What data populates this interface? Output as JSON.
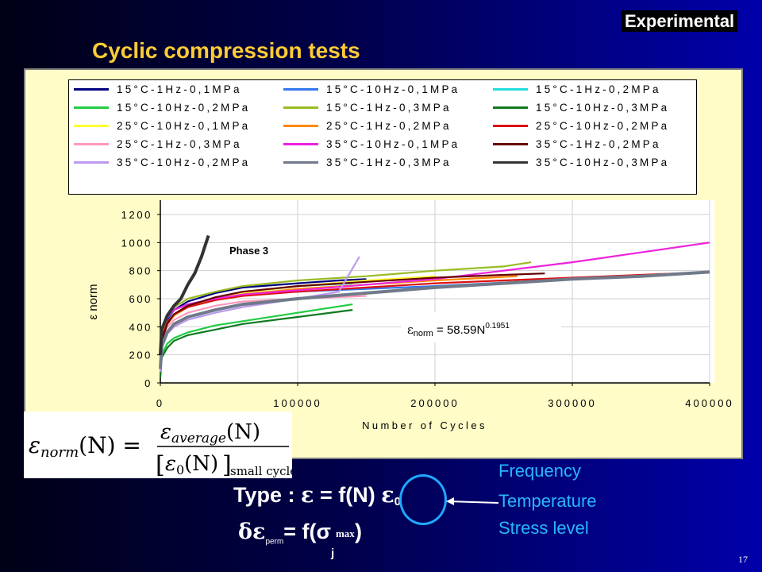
{
  "header": {
    "tag": "Experimental",
    "title": "Cyclic compression tests"
  },
  "chart_data": {
    "type": "line",
    "xlabel": "Number of Cycles",
    "ylabel": "ε norm",
    "xlim": [
      0,
      400000
    ],
    "ylim": [
      0,
      1200
    ],
    "xticks": [
      "0",
      "100000",
      "200000",
      "300000",
      "400000"
    ],
    "yticks": [
      "0",
      "200",
      "400",
      "600",
      "800",
      "1000",
      "1200"
    ],
    "grid": true,
    "legend": "top",
    "annotations": {
      "phase": "Phase 3",
      "fit_lhs": "ε",
      "fit_sub": "norm",
      "fit_rhs": " = 58.59N",
      "fit_exp": "0.1951"
    },
    "series": [
      {
        "name": "15°C-1Hz-0,1MPa",
        "color": "#000080",
        "x": [
          0,
          1000,
          5000,
          10000,
          20000,
          40000,
          60000,
          100000,
          130000,
          150000
        ],
        "y": [
          150,
          330,
          450,
          520,
          580,
          640,
          680,
          710,
          730,
          740
        ]
      },
      {
        "name": "15°C-10Hz-0,1MPa",
        "color": "#3377ee",
        "x": [
          0,
          1000,
          5000,
          10000,
          20000,
          40000,
          60000,
          100000,
          150000,
          200000,
          260000
        ],
        "y": [
          200,
          350,
          460,
          520,
          560,
          600,
          630,
          650,
          670,
          690,
          720
        ]
      },
      {
        "name": "15°C-1Hz-0,2MPa",
        "color": "#22dddd",
        "x": [
          0,
          1000,
          5000,
          10000,
          20000,
          40000,
          60000,
          100000,
          140000
        ],
        "y": [
          150,
          330,
          430,
          480,
          540,
          600,
          640,
          690,
          710
        ]
      },
      {
        "name": "15°C-10Hz-0,2MPa",
        "color": "#22cc44",
        "x": [
          0,
          1000,
          5000,
          10000,
          20000,
          40000,
          60000,
          100000,
          140000
        ],
        "y": [
          60,
          200,
          280,
          320,
          360,
          410,
          440,
          500,
          560
        ]
      },
      {
        "name": "15°C-1Hz-0,3MPa",
        "color": "#99bb22",
        "x": [
          0,
          1000,
          5000,
          10000,
          20000,
          40000,
          60000,
          100000,
          150000,
          200000,
          250000,
          270000
        ],
        "y": [
          140,
          350,
          470,
          540,
          600,
          650,
          690,
          730,
          760,
          800,
          830,
          860
        ]
      },
      {
        "name": "15°C-10Hz-0,3MPa",
        "color": "#107a20",
        "x": [
          0,
          1000,
          5000,
          10000,
          20000,
          40000,
          60000,
          100000,
          140000
        ],
        "y": [
          40,
          180,
          250,
          300,
          340,
          380,
          420,
          470,
          520
        ]
      },
      {
        "name": "25°C-10Hz-0,1MPa",
        "color": "#ffff33",
        "x": [
          0,
          1000,
          5000,
          10000,
          20000,
          40000,
          60000,
          100000,
          150000,
          200000
        ],
        "y": [
          100,
          300,
          420,
          480,
          540,
          600,
          640,
          690,
          730,
          760
        ]
      },
      {
        "name": "25°C-1Hz-0,2MPa",
        "color": "#ff8800",
        "x": [
          0,
          1000,
          5000,
          10000,
          20000,
          40000,
          60000,
          100000,
          150000,
          200000,
          260000
        ],
        "y": [
          100,
          300,
          420,
          480,
          540,
          590,
          630,
          670,
          700,
          730,
          760
        ]
      },
      {
        "name": "25°C-10Hz-0,2MPa",
        "color": "#dd1111",
        "x": [
          0,
          1000,
          5000,
          10000,
          20000,
          40000,
          60000,
          100000,
          150000,
          200000,
          250000,
          300000,
          350000,
          400000
        ],
        "y": [
          120,
          320,
          430,
          490,
          540,
          590,
          620,
          650,
          680,
          710,
          730,
          750,
          770,
          790
        ]
      },
      {
        "name": "25°C-1Hz-0,3MPa",
        "color": "#ff99bb",
        "x": [
          0,
          1000,
          5000,
          10000,
          20000,
          40000,
          60000,
          100000,
          150000
        ],
        "y": [
          120,
          300,
          400,
          450,
          500,
          550,
          580,
          600,
          620
        ]
      },
      {
        "name": "35°C-10Hz-0,1MPa",
        "color": "#ee22dd",
        "x": [
          0,
          1000,
          5000,
          10000,
          20000,
          40000,
          60000,
          100000,
          150000,
          200000,
          250000,
          300000,
          350000,
          400000
        ],
        "y": [
          150,
          380,
          470,
          520,
          560,
          600,
          630,
          660,
          700,
          740,
          800,
          860,
          930,
          1000
        ]
      },
      {
        "name": "35°C-1Hz-0,2MPa",
        "color": "#660000",
        "x": [
          0,
          1000,
          5000,
          10000,
          20000,
          40000,
          60000,
          100000,
          150000,
          200000,
          250000,
          280000
        ],
        "y": [
          100,
          300,
          420,
          490,
          550,
          610,
          650,
          690,
          720,
          750,
          770,
          780
        ]
      },
      {
        "name": "35°C-10Hz-0,2MPa",
        "color": "#bb99ee",
        "x": [
          0,
          1000,
          5000,
          10000,
          20000,
          40000,
          60000,
          100000,
          130000,
          145000
        ],
        "y": [
          80,
          250,
          350,
          400,
          450,
          500,
          540,
          600,
          650,
          900
        ]
      },
      {
        "name": "35°C-1Hz-0,3MPa",
        "color": "#707a8a",
        "x": [
          0,
          1000,
          5000,
          10000,
          20000,
          40000,
          60000,
          100000,
          150000,
          200000,
          250000,
          300000,
          350000,
          400000
        ],
        "y": [
          100,
          260,
          360,
          420,
          470,
          520,
          560,
          600,
          640,
          680,
          710,
          740,
          760,
          790
        ]
      },
      {
        "name": "35°C-10Hz-0,3MPa",
        "color": "#333333",
        "x": [
          0,
          1000,
          5000,
          10000,
          15000,
          20000,
          25000,
          30000,
          35000
        ],
        "y": [
          200,
          380,
          480,
          550,
          600,
          700,
          780,
          900,
          1050
        ]
      }
    ]
  },
  "bottom": {
    "type_label": "Type : ",
    "eps_symbol": "ε",
    "type_rest": " = f(N)",
    "eps0_symbol": "ε",
    "eps0_sub": "0",
    "perm_delta": "δε",
    "perm_sub": "perm",
    "perm_mid": "= f(σ",
    "perm_j": "j",
    "perm_max": "max",
    "perm_end": ")"
  },
  "factors": [
    "Frequency",
    "Temperature",
    "Stress level"
  ],
  "formula": {
    "lhs": "ε",
    "lhs_sub": "norm",
    "lhs_arg": "(N) =",
    "num": "ε",
    "num_sub": "average",
    "num_arg": "(N)",
    "den": "ε",
    "den_sub": "0",
    "den_arg": "(N)",
    "den_tail": "small cycles"
  },
  "page_number": "17"
}
